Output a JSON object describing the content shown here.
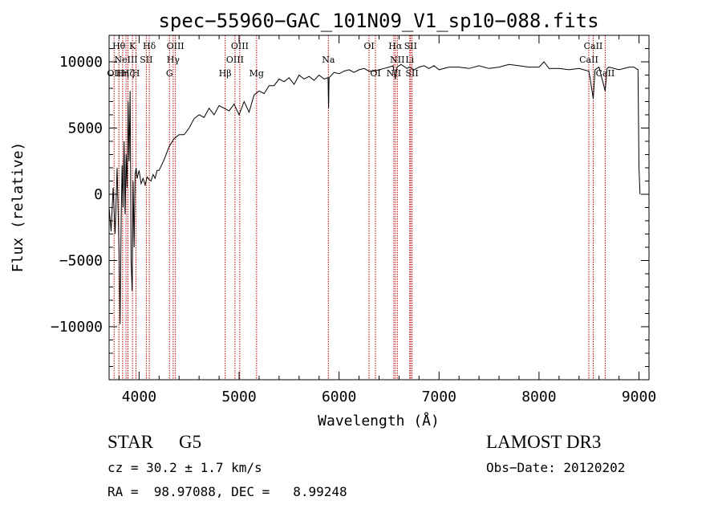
{
  "chart_data": {
    "type": "line",
    "title": "spec−55960−GAC_101N09_V1_sp10−088.fits",
    "xlabel": "Wavelength (Å)",
    "ylabel": "Flux (relative)",
    "xlim": [
      3700,
      9100
    ],
    "ylim": [
      -14000,
      12000
    ],
    "xticks": [
      4000,
      5000,
      6000,
      7000,
      8000,
      9000
    ],
    "xtick_labels": [
      "4000",
      "5000",
      "6000",
      "7000",
      "8000",
      "9000"
    ],
    "yticks": [
      -10000,
      -5000,
      0,
      5000,
      10000
    ],
    "ytick_labels": [
      "−10000",
      "−5000",
      "0",
      "5000",
      "10000"
    ],
    "series": [
      {
        "name": "spectrum",
        "color": "#000000",
        "x": [
          3700,
          3720,
          3740,
          3760,
          3780,
          3800,
          3810,
          3820,
          3830,
          3840,
          3850,
          3860,
          3870,
          3880,
          3890,
          3900,
          3910,
          3920,
          3930,
          3940,
          3950,
          3960,
          3970,
          3980,
          3990,
          4000,
          4020,
          4040,
          4060,
          4080,
          4100,
          4120,
          4140,
          4160,
          4180,
          4200,
          4250,
          4300,
          4350,
          4400,
          4450,
          4500,
          4550,
          4600,
          4650,
          4700,
          4750,
          4800,
          4850,
          4900,
          4950,
          5000,
          5050,
          5100,
          5150,
          5200,
          5250,
          5300,
          5350,
          5400,
          5450,
          5500,
          5550,
          5600,
          5650,
          5700,
          5750,
          5800,
          5850,
          5890,
          5895,
          5900,
          5950,
          6000,
          6050,
          6100,
          6150,
          6200,
          6250,
          6300,
          6350,
          6400,
          6450,
          6500,
          6540,
          6563,
          6580,
          6620,
          6680,
          6700,
          6750,
          6800,
          6850,
          6900,
          6950,
          7000,
          7100,
          7200,
          7300,
          7400,
          7500,
          7600,
          7700,
          7800,
          7900,
          8000,
          8050,
          8100,
          8200,
          8300,
          8400,
          8498,
          8510,
          8542,
          8560,
          8600,
          8662,
          8680,
          8700,
          8800,
          8900,
          8950,
          8990,
          9000,
          9010
        ],
        "values": [
          -1000,
          -2800,
          500,
          -3000,
          2000,
          -4500,
          -9800,
          -2000,
          2200,
          -1000,
          4000,
          -1500,
          3000,
          500,
          7000,
          2500,
          7800,
          -5000,
          -7300,
          1000,
          -4000,
          1500,
          2000,
          1200,
          1500,
          1800,
          800,
          1200,
          700,
          1300,
          1100,
          1000,
          1500,
          1200,
          1800,
          1800,
          2600,
          3600,
          4200,
          4500,
          4500,
          5000,
          5700,
          6000,
          5800,
          6500,
          6000,
          6700,
          6500,
          6300,
          6800,
          6000,
          7000,
          6200,
          7500,
          7800,
          7600,
          8200,
          8200,
          8700,
          8500,
          8800,
          8300,
          9000,
          8700,
          8900,
          8600,
          9000,
          8700,
          8800,
          6500,
          8800,
          9200,
          9100,
          9300,
          9400,
          9200,
          9400,
          9500,
          9300,
          9300,
          9400,
          9500,
          9600,
          9700,
          8700,
          9600,
          9800,
          9500,
          9600,
          9400,
          9600,
          9700,
          9500,
          9700,
          9400,
          9600,
          9600,
          9500,
          9700,
          9500,
          9600,
          9800,
          9700,
          9600,
          9600,
          10000,
          9500,
          9500,
          9400,
          9500,
          9300,
          8800,
          7200,
          9400,
          9600,
          7800,
          9500,
          9600,
          9400,
          9600,
          9600,
          9400,
          2000,
          0
        ]
      }
    ],
    "lines": [
      {
        "x": 3750,
        "label": "OII",
        "row": 3
      },
      {
        "x": 3798,
        "label": "Hθ",
        "row": 1
      },
      {
        "x": 3835,
        "label": "Hη",
        "row": 3
      },
      {
        "x": 3869,
        "label": "NeIII",
        "row": 2
      },
      {
        "x": 3889,
        "label": "Hζ",
        "row": 3
      },
      {
        "x": 3934,
        "label": "K",
        "row": 1
      },
      {
        "x": 3969,
        "label": "H",
        "row": 3
      },
      {
        "x": 4072,
        "label": "SII",
        "row": 2
      },
      {
        "x": 4102,
        "label": "Hδ",
        "row": 1
      },
      {
        "x": 4304,
        "label": "G",
        "row": 3
      },
      {
        "x": 4341,
        "label": "Hγ",
        "row": 2
      },
      {
        "x": 4363,
        "label": "OIII",
        "row": 1
      },
      {
        "x": 4861,
        "label": "Hβ",
        "row": 3
      },
      {
        "x": 4959,
        "label": "OIII",
        "row": 2
      },
      {
        "x": 5007,
        "label": "OIII",
        "row": 1
      },
      {
        "x": 5175,
        "label": "Mg",
        "row": 3
      },
      {
        "x": 5893,
        "label": "Na",
        "row": 2
      },
      {
        "x": 6300,
        "label": "OI",
        "row": 1
      },
      {
        "x": 6364,
        "label": "OI",
        "row": 3
      },
      {
        "x": 6548,
        "label": "NII",
        "row": 3
      },
      {
        "x": 6563,
        "label": "Hα",
        "row": 1
      },
      {
        "x": 6583,
        "label": "NII",
        "row": 2
      },
      {
        "x": 6707,
        "label": "Li",
        "row": 2
      },
      {
        "x": 6716,
        "label": "SII",
        "row": 1
      },
      {
        "x": 6730,
        "label": "SII",
        "row": 3
      },
      {
        "x": 8498,
        "label": "CaII",
        "row": 2
      },
      {
        "x": 8542,
        "label": "CaII",
        "row": 1
      },
      {
        "x": 8662,
        "label": "CaII",
        "row": 3
      }
    ],
    "line_color": "#c00000"
  },
  "info": {
    "object_class": "STAR",
    "subclass": "G5",
    "survey": "LAMOST DR3",
    "redshift": "cz = 30.2 ± 1.7 km/s",
    "obs_date": "Obs−Date: 20120202",
    "coords": "RA =  98.97088, DEC =   8.99248"
  }
}
